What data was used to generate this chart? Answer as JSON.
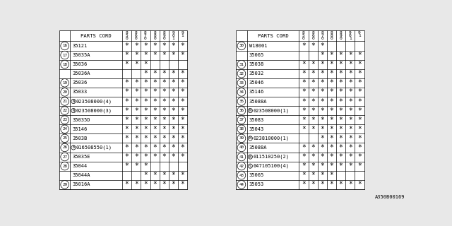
{
  "bg_color": "#e8e8e8",
  "col_headers_top": [
    "8",
    "8",
    "8",
    "8",
    "8",
    "9",
    "9"
  ],
  "col_headers_mid": [
    "5",
    "6",
    "7",
    "8",
    "9",
    "0",
    "1"
  ],
  "col_headers_bot": [
    "0",
    "0",
    "0",
    "0",
    "0",
    "1",
    ""
  ],
  "left_table": {
    "title": "PARTS CORD",
    "rows": [
      {
        "ref": "16",
        "ref_show": true,
        "part": "35121",
        "prefix": "",
        "stars": [
          1,
          1,
          1,
          1,
          1,
          1,
          1
        ]
      },
      {
        "ref": "17",
        "ref_show": true,
        "part": "35035A",
        "prefix": "",
        "stars": [
          1,
          1,
          1,
          1,
          1,
          1,
          1
        ]
      },
      {
        "ref": "18",
        "ref_show": true,
        "part": "35036",
        "prefix": "",
        "stars": [
          1,
          1,
          1,
          0,
          0,
          0,
          0
        ]
      },
      {
        "ref": "18",
        "ref_show": false,
        "part": "35036A",
        "prefix": "",
        "stars": [
          0,
          0,
          1,
          1,
          1,
          1,
          1
        ]
      },
      {
        "ref": "19",
        "ref_show": true,
        "part": "35036",
        "prefix": "",
        "stars": [
          1,
          1,
          1,
          1,
          1,
          1,
          1
        ]
      },
      {
        "ref": "20",
        "ref_show": true,
        "part": "35033",
        "prefix": "",
        "stars": [
          1,
          1,
          1,
          1,
          1,
          1,
          1
        ]
      },
      {
        "ref": "21",
        "ref_show": true,
        "part": "023508000(4)",
        "prefix": "N",
        "stars": [
          1,
          1,
          1,
          1,
          1,
          1,
          1
        ]
      },
      {
        "ref": "22",
        "ref_show": true,
        "part": "023508000(3)",
        "prefix": "N",
        "stars": [
          1,
          1,
          1,
          1,
          1,
          1,
          1
        ]
      },
      {
        "ref": "23",
        "ref_show": true,
        "part": "35035D",
        "prefix": "",
        "stars": [
          1,
          1,
          1,
          1,
          1,
          1,
          1
        ]
      },
      {
        "ref": "24",
        "ref_show": true,
        "part": "35146",
        "prefix": "",
        "stars": [
          1,
          1,
          1,
          1,
          1,
          1,
          1
        ]
      },
      {
        "ref": "25",
        "ref_show": true,
        "part": "3503B",
        "prefix": "",
        "stars": [
          1,
          1,
          1,
          1,
          1,
          1,
          1
        ]
      },
      {
        "ref": "26",
        "ref_show": true,
        "part": "016508550(1)",
        "prefix": "B",
        "stars": [
          1,
          1,
          1,
          1,
          1,
          1,
          1
        ]
      },
      {
        "ref": "27",
        "ref_show": true,
        "part": "35035E",
        "prefix": "",
        "stars": [
          1,
          1,
          1,
          1,
          1,
          1,
          1
        ]
      },
      {
        "ref": "28",
        "ref_show": true,
        "part": "35044",
        "prefix": "",
        "stars": [
          1,
          1,
          1,
          0,
          0,
          0,
          0
        ]
      },
      {
        "ref": "28",
        "ref_show": false,
        "part": "35044A",
        "prefix": "",
        "stars": [
          0,
          0,
          1,
          1,
          1,
          1,
          1
        ]
      },
      {
        "ref": "29",
        "ref_show": true,
        "part": "35016A",
        "prefix": "",
        "stars": [
          1,
          1,
          1,
          1,
          1,
          1,
          1
        ]
      }
    ]
  },
  "right_table": {
    "title": "PARTS CORD",
    "rows": [
      {
        "ref": "30",
        "ref_show": true,
        "part": "W18001",
        "prefix": "",
        "stars": [
          1,
          1,
          1,
          0,
          0,
          0,
          0
        ]
      },
      {
        "ref": "30",
        "ref_show": false,
        "part": "35065",
        "prefix": "",
        "stars": [
          0,
          0,
          1,
          1,
          1,
          1,
          1
        ]
      },
      {
        "ref": "31",
        "ref_show": true,
        "part": "35038",
        "prefix": "",
        "stars": [
          1,
          1,
          1,
          1,
          1,
          1,
          1
        ]
      },
      {
        "ref": "32",
        "ref_show": true,
        "part": "35032",
        "prefix": "",
        "stars": [
          1,
          1,
          1,
          1,
          1,
          1,
          1
        ]
      },
      {
        "ref": "33",
        "ref_show": true,
        "part": "35046",
        "prefix": "",
        "stars": [
          1,
          1,
          1,
          1,
          1,
          1,
          1
        ]
      },
      {
        "ref": "34",
        "ref_show": true,
        "part": "35146",
        "prefix": "",
        "stars": [
          1,
          1,
          1,
          1,
          1,
          1,
          1
        ]
      },
      {
        "ref": "35",
        "ref_show": true,
        "part": "35088A",
        "prefix": "",
        "stars": [
          1,
          1,
          1,
          1,
          1,
          1,
          1
        ]
      },
      {
        "ref": "36",
        "ref_show": true,
        "part": "023508000(1)",
        "prefix": "N",
        "stars": [
          1,
          1,
          1,
          1,
          1,
          1,
          1
        ]
      },
      {
        "ref": "37",
        "ref_show": true,
        "part": "35083",
        "prefix": "",
        "stars": [
          1,
          1,
          1,
          1,
          1,
          1,
          1
        ]
      },
      {
        "ref": "38",
        "ref_show": true,
        "part": "35043",
        "prefix": "",
        "stars": [
          1,
          1,
          1,
          1,
          1,
          1,
          1
        ]
      },
      {
        "ref": "39",
        "ref_show": true,
        "part": "023810000(1)",
        "prefix": "N",
        "stars": [
          0,
          0,
          1,
          1,
          1,
          1,
          1
        ]
      },
      {
        "ref": "40",
        "ref_show": true,
        "part": "35088A",
        "prefix": "",
        "stars": [
          1,
          1,
          1,
          1,
          1,
          1,
          1
        ]
      },
      {
        "ref": "41",
        "ref_show": true,
        "part": "011510250(2)",
        "prefix": "B",
        "stars": [
          1,
          1,
          1,
          1,
          1,
          1,
          1
        ]
      },
      {
        "ref": "42",
        "ref_show": true,
        "part": "047105100(4)",
        "prefix": "S",
        "stars": [
          1,
          1,
          1,
          1,
          1,
          1,
          1
        ]
      },
      {
        "ref": "43",
        "ref_show": true,
        "part": "35065",
        "prefix": "",
        "stars": [
          1,
          1,
          1,
          1,
          0,
          0,
          0
        ]
      },
      {
        "ref": "44",
        "ref_show": true,
        "part": "35053",
        "prefix": "",
        "stars": [
          1,
          1,
          1,
          1,
          1,
          1,
          1
        ]
      }
    ]
  },
  "watermark": "A350B00169",
  "lw": 0.5
}
